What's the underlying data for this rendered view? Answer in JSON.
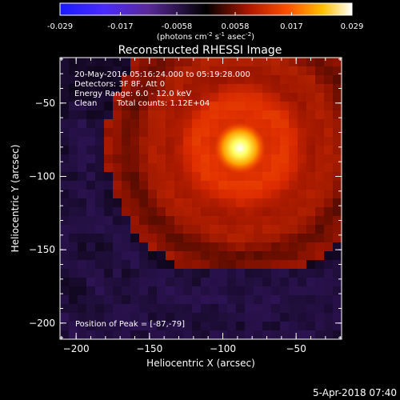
{
  "colorbar": {
    "tick_labels": [
      "-0.029",
      "-0.017",
      "-0.0058",
      "0.0058",
      "0.017",
      "0.029"
    ],
    "tick_values": [
      -0.029,
      -0.017,
      -0.0058,
      0.0058,
      0.017,
      0.029
    ],
    "range": [
      -0.029,
      0.029
    ],
    "units_prefix": "(photons cm",
    "units_exp1": "-2",
    "units_mid1": " s",
    "units_exp2": "-1",
    "units_mid2": " asec",
    "units_exp3": "-2",
    "units_suffix": ")"
  },
  "title": "Reconstructed RHESSI Image",
  "annotations": {
    "line1": "20-May-2016 05:16:24.000 to 05:19:28.000",
    "line2": "Detectors: 3F 8F, Att 0",
    "line3": "Energy Range: 6.0 - 12.0 keV",
    "line4_left": "Clean",
    "line4_right": "Total counts: 1.12E+04",
    "peak": "Position of Peak = [-87,-79]"
  },
  "axes": {
    "xlabel": "Heliocentric X (arcsec)",
    "ylabel": "Heliocentric Y (arcsec)",
    "x_ticks": [
      -200,
      -150,
      -100,
      -50
    ],
    "y_ticks": [
      -50,
      -100,
      -150,
      -200
    ],
    "xlim": [
      -211,
      -19
    ],
    "ylim": [
      -211,
      -19
    ]
  },
  "image": {
    "colormap": "blue-purple-black-red-yellow-white",
    "peak_x": -87,
    "peak_y": -79
  },
  "footer": {
    "timestamp": "5-Apr-2018 07:40"
  }
}
